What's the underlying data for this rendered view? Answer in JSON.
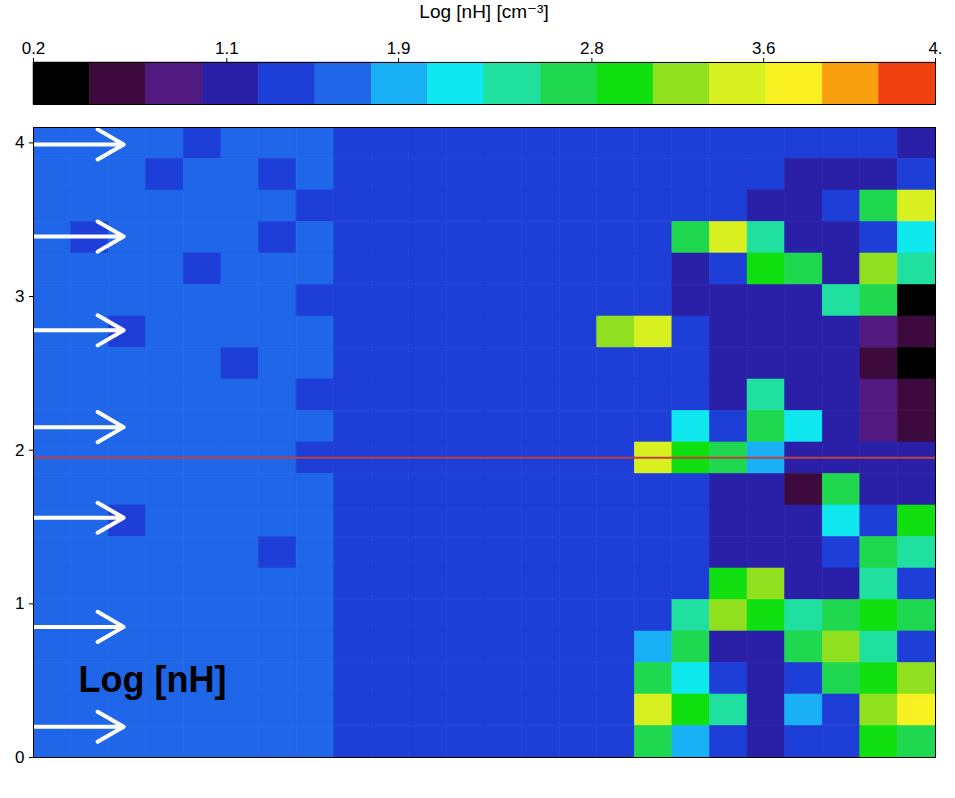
{
  "chart_data": {
    "type": "heatmap",
    "xlim": [
      0,
      6
    ],
    "ylim": [
      0,
      4.1
    ],
    "yticks": [
      0,
      1,
      2,
      3,
      4
    ],
    "tick_labels": "y",
    "colorbar": {
      "label": "Log [nH] [cm⁻³]",
      "range": [
        0.2,
        4.4
      ],
      "ticks": [
        0.2,
        1.1,
        1.9,
        2.8,
        3.6,
        {
          "value": 4.4,
          "label": "4."
        }
      ],
      "colors": [
        "#000000",
        "#3c0a3c",
        "#501a80",
        "#2a20a8",
        "#1e3ed8",
        "#1f66e8",
        "#1ab0f5",
        "#10e8f0",
        "#20e0a0",
        "#20d850",
        "#10e010",
        "#90e020",
        "#d8f020",
        "#f8f020",
        "#f8a010",
        "#f04010"
      ]
    },
    "heatmap": {
      "x_edges": [
        0,
        0.25,
        0.5,
        0.75,
        1,
        1.25,
        1.5,
        1.75,
        2,
        2.25,
        2.5,
        2.75,
        3,
        3.25,
        3.5,
        3.75,
        4,
        4.25,
        4.5,
        4.75,
        5,
        5.25,
        5.5,
        5.75,
        6
      ],
      "y_edges": [
        4.1,
        3.895,
        3.69,
        3.485,
        3.28,
        3.075,
        2.87,
        2.665,
        2.46,
        2.255,
        2.05,
        1.845,
        1.64,
        1.435,
        1.23,
        1.025,
        0.82,
        0.615,
        0.41,
        0.205,
        0
      ],
      "values": [
        [
          1.6,
          1.6,
          1.6,
          1.6,
          1.5,
          1.6,
          1.6,
          1.6,
          1.5,
          1.5,
          1.4,
          1.4,
          1.4,
          1.4,
          1.4,
          1.4,
          1.4,
          1.4,
          1.3,
          1.3,
          1.3,
          1.3,
          1.3,
          1.2
        ],
        [
          1.6,
          1.6,
          1.6,
          1.5,
          1.6,
          1.6,
          1.5,
          1.6,
          1.5,
          1.4,
          1.4,
          1.4,
          1.4,
          1.4,
          1.4,
          1.4,
          1.4,
          1.3,
          1.3,
          1.3,
          1.2,
          1.2,
          1.2,
          1.3
        ],
        [
          1.6,
          1.6,
          1.6,
          1.6,
          1.6,
          1.6,
          1.6,
          1.5,
          1.5,
          1.4,
          1.4,
          1.4,
          1.4,
          1.4,
          1.4,
          1.4,
          1.4,
          1.3,
          1.3,
          1.2,
          1.2,
          1.3,
          2.7,
          3.5
        ],
        [
          1.6,
          1.5,
          1.6,
          1.6,
          1.6,
          1.6,
          1.5,
          1.6,
          1.5,
          1.5,
          1.4,
          1.4,
          1.4,
          1.4,
          1.4,
          1.4,
          1.3,
          2.7,
          3.5,
          2.5,
          1.2,
          1.2,
          1.3,
          2.2
        ],
        [
          1.6,
          1.6,
          1.6,
          1.6,
          1.5,
          1.6,
          1.6,
          1.6,
          1.5,
          1.4,
          1.4,
          1.4,
          1.4,
          1.4,
          1.4,
          1.4,
          1.3,
          1.2,
          1.3,
          3.0,
          2.6,
          1.2,
          3.2,
          2.5
        ],
        [
          1.6,
          1.6,
          1.6,
          1.6,
          1.6,
          1.6,
          1.6,
          1.5,
          1.5,
          1.4,
          1.4,
          1.4,
          1.4,
          1.4,
          1.4,
          1.4,
          1.3,
          1.2,
          1.2,
          1.2,
          1.1,
          2.4,
          2.7,
          0.4
        ],
        [
          1.6,
          1.6,
          1.5,
          1.6,
          1.6,
          1.6,
          1.6,
          1.6,
          1.5,
          1.4,
          1.4,
          1.4,
          1.4,
          1.4,
          1.4,
          3.3,
          3.6,
          1.3,
          1.2,
          1.2,
          1.1,
          1.0,
          0.8,
          0.5
        ],
        [
          1.6,
          1.6,
          1.6,
          1.6,
          1.6,
          1.5,
          1.6,
          1.6,
          1.5,
          1.5,
          1.4,
          1.4,
          1.4,
          1.4,
          1.4,
          1.4,
          1.3,
          1.3,
          1.2,
          1.2,
          1.2,
          1.0,
          0.7,
          0.4
        ],
        [
          1.6,
          1.6,
          1.6,
          1.6,
          1.6,
          1.6,
          1.6,
          1.5,
          1.5,
          1.4,
          1.4,
          1.4,
          1.4,
          1.4,
          1.4,
          1.4,
          1.4,
          1.3,
          1.2,
          2.5,
          1.2,
          1.1,
          0.8,
          0.5
        ],
        [
          1.6,
          1.6,
          1.6,
          1.6,
          1.6,
          1.6,
          1.6,
          1.6,
          1.5,
          1.4,
          1.4,
          1.4,
          1.4,
          1.4,
          1.4,
          1.4,
          1.4,
          2.1,
          1.3,
          2.8,
          2.3,
          1.1,
          0.9,
          0.6
        ],
        [
          1.6,
          1.6,
          1.6,
          1.6,
          1.6,
          1.6,
          1.6,
          1.5,
          1.5,
          1.4,
          1.4,
          1.4,
          1.4,
          1.4,
          1.4,
          1.4,
          3.4,
          3.0,
          2.6,
          2.0,
          1.2,
          1.1,
          1.0,
          1.0
        ],
        [
          1.6,
          1.6,
          1.6,
          1.6,
          1.6,
          1.6,
          1.6,
          1.6,
          1.5,
          1.5,
          1.4,
          1.4,
          1.4,
          1.4,
          1.4,
          1.4,
          1.3,
          1.3,
          1.2,
          1.1,
          0.6,
          2.7,
          1.2,
          1.2
        ],
        [
          1.6,
          1.6,
          1.5,
          1.6,
          1.6,
          1.6,
          1.6,
          1.6,
          1.5,
          1.4,
          1.4,
          1.4,
          1.4,
          1.4,
          1.4,
          1.4,
          1.4,
          1.3,
          1.2,
          1.2,
          1.1,
          2.2,
          1.3,
          3.0
        ],
        [
          1.6,
          1.6,
          1.6,
          1.6,
          1.6,
          1.6,
          1.5,
          1.6,
          1.5,
          1.4,
          1.4,
          1.4,
          1.4,
          1.4,
          1.4,
          1.4,
          1.4,
          1.3,
          1.2,
          1.2,
          1.2,
          1.3,
          2.7,
          2.5
        ],
        [
          1.6,
          1.6,
          1.6,
          1.6,
          1.6,
          1.6,
          1.6,
          1.6,
          1.5,
          1.4,
          1.4,
          1.4,
          1.4,
          1.4,
          1.4,
          1.4,
          1.4,
          1.3,
          2.9,
          3.3,
          1.1,
          1.2,
          2.4,
          1.3
        ],
        [
          1.6,
          1.6,
          1.6,
          1.6,
          1.6,
          1.6,
          1.6,
          1.6,
          1.5,
          1.5,
          1.4,
          1.4,
          1.4,
          1.4,
          1.4,
          1.4,
          1.4,
          2.5,
          3.1,
          2.9,
          2.4,
          2.6,
          3.0,
          2.6
        ],
        [
          1.6,
          1.6,
          1.6,
          1.6,
          1.6,
          1.6,
          1.6,
          1.6,
          1.5,
          1.4,
          1.4,
          1.4,
          1.4,
          1.4,
          1.4,
          1.4,
          2.0,
          2.6,
          1.0,
          1.0,
          2.8,
          3.2,
          2.5,
          1.3
        ],
        [
          1.6,
          1.6,
          1.6,
          1.6,
          1.6,
          1.6,
          1.6,
          1.6,
          1.5,
          1.4,
          1.4,
          1.4,
          1.4,
          1.4,
          1.4,
          1.4,
          2.7,
          2.2,
          1.3,
          1.2,
          1.3,
          2.6,
          3.0,
          3.3
        ],
        [
          1.6,
          1.6,
          1.6,
          1.6,
          1.6,
          1.6,
          1.6,
          1.6,
          1.5,
          1.4,
          1.4,
          1.4,
          1.4,
          1.4,
          1.4,
          1.4,
          3.6,
          3.0,
          2.4,
          1.2,
          2.0,
          1.3,
          3.2,
          3.8
        ],
        [
          1.6,
          1.6,
          1.6,
          1.6,
          1.6,
          1.6,
          1.6,
          1.6,
          1.5,
          1.5,
          1.4,
          1.4,
          1.4,
          1.4,
          1.4,
          1.4,
          2.8,
          2.0,
          1.3,
          1.1,
          1.3,
          1.4,
          3.0,
          2.8
        ]
      ]
    },
    "hline": {
      "value": 1.95,
      "color": "#c04040"
    },
    "arrows": {
      "x": [
        0,
        0.6
      ],
      "y": [
        3.99,
        3.39,
        2.78,
        2.15,
        1.56,
        0.85,
        0.2
      ],
      "color": "#ffffff"
    },
    "annotations": [
      {
        "text": "Log [nH]",
        "x": 0.3,
        "y": 0.5
      }
    ]
  }
}
